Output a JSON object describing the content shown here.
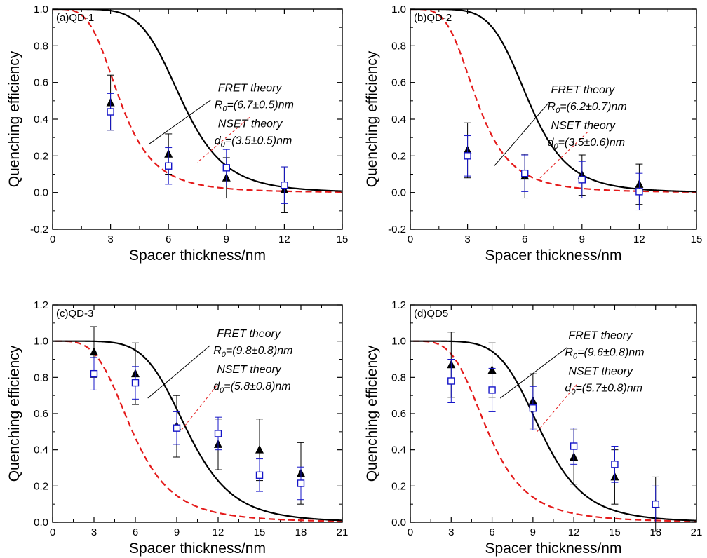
{
  "chart_data": [
    {
      "type": "scatter",
      "panel_label": "(a)QD-1",
      "xlabel": "Spacer thickness/nm",
      "ylabel": "Quenching efficiency",
      "xlim": [
        0,
        15
      ],
      "ylim": [
        -0.2,
        1.0
      ],
      "xticks": [
        "0",
        "3",
        "6",
        "9",
        "12",
        "15"
      ],
      "yticks": [
        "-0.2",
        "0.0",
        "0.2",
        "0.4",
        "0.6",
        "0.8",
        "1.0"
      ],
      "fret_label": "FRET theory",
      "fret_param": "R",
      "fret_value": "=(6.7±0.5)nm",
      "nset_label": "NSET theory",
      "nset_param": "d",
      "nset_value": "=(3.5±0.5)nm",
      "series": [
        {
          "name": "black triangles",
          "x": [
            3,
            6,
            9,
            12
          ],
          "y": [
            0.49,
            0.21,
            0.08,
            0.015
          ],
          "err": [
            0.15,
            0.11,
            0.11,
            0.125
          ],
          "color": "#000000"
        },
        {
          "name": "blue squares",
          "x": [
            3,
            6,
            9,
            12
          ],
          "y": [
            0.44,
            0.145,
            0.135,
            0.04
          ],
          "err": [
            0.1,
            0.1,
            0.1,
            0.1
          ],
          "color": "#1515c8"
        }
      ],
      "fret_curve": {
        "R0": 6.7,
        "color": "#000000",
        "style": "solid"
      },
      "nset_curve": {
        "d0": 3.5,
        "color": "#e41a1a",
        "style": "dashed"
      },
      "fret_pointer": {
        "from": [
          8.2,
          0.505
        ],
        "to": [
          5.0,
          0.265
        ]
      },
      "nset_pointer": {
        "from": [
          10.2,
          0.41
        ],
        "to": [
          7.5,
          0.165
        ]
      }
    },
    {
      "type": "scatter",
      "panel_label": "(b)QD-2",
      "xlabel": "Spacer thickness/nm",
      "ylabel": "Quenching efficiency",
      "xlim": [
        0,
        15
      ],
      "ylim": [
        -0.2,
        1.0
      ],
      "xticks": [
        "0",
        "3",
        "6",
        "9",
        "12",
        "15"
      ],
      "yticks": [
        "-0.2",
        "0.0",
        "0.2",
        "0.4",
        "0.6",
        "0.8",
        "1.0"
      ],
      "fret_label": "FRET theory",
      "fret_param": "R",
      "fret_value": "=(6.2±0.7)nm",
      "nset_label": "NSET theory",
      "nset_param": "d",
      "nset_value": "=(3.5±0.6)nm",
      "series": [
        {
          "name": "black triangles",
          "x": [
            3,
            6,
            9,
            12
          ],
          "y": [
            0.23,
            0.09,
            0.095,
            0.045
          ],
          "err": [
            0.15,
            0.12,
            0.11,
            0.11
          ],
          "color": "#000000"
        },
        {
          "name": "blue squares",
          "x": [
            3,
            6,
            9,
            12
          ],
          "y": [
            0.2,
            0.105,
            0.07,
            0.005
          ],
          "err": [
            0.11,
            0.1,
            0.1,
            0.1
          ],
          "color": "#1515c8"
        }
      ],
      "fret_curve": {
        "R0": 6.2,
        "color": "#000000",
        "style": "solid"
      },
      "nset_curve": {
        "d0": 3.5,
        "color": "#e41a1a",
        "style": "dashed"
      },
      "fret_pointer": {
        "from": [
          7.3,
          0.495
        ],
        "to": [
          4.4,
          0.145
        ]
      },
      "nset_pointer": {
        "from": [
          9.3,
          0.33
        ],
        "to": [
          6.8,
          0.08
        ]
      }
    },
    {
      "type": "scatter",
      "panel_label": "(c)QD-3",
      "xlabel": "Spacer thickness/nm",
      "ylabel": "Quenching efficiency",
      "xlim": [
        0,
        21
      ],
      "ylim": [
        0.0,
        1.2
      ],
      "xticks": [
        "0",
        "3",
        "6",
        "9",
        "12",
        "15",
        "18",
        "21"
      ],
      "yticks": [
        "0.0",
        "0.2",
        "0.4",
        "0.6",
        "0.8",
        "1.0",
        "1.2"
      ],
      "fret_label": "FRET theory",
      "fret_param": "R",
      "fret_value": "=(9.8±0.8)nm",
      "nset_label": "NSET theory",
      "nset_param": "d",
      "nset_value": "=(5.8±0.8)nm",
      "series": [
        {
          "name": "black triangles",
          "x": [
            3,
            6,
            9,
            12,
            15,
            18
          ],
          "y": [
            0.94,
            0.82,
            0.53,
            0.43,
            0.4,
            0.27
          ],
          "err": [
            0.14,
            0.17,
            0.17,
            0.14,
            0.17,
            0.17
          ],
          "color": "#000000"
        },
        {
          "name": "blue squares",
          "x": [
            3,
            6,
            9,
            12,
            15,
            18
          ],
          "y": [
            0.82,
            0.77,
            0.52,
            0.49,
            0.26,
            0.215
          ],
          "err": [
            0.09,
            0.09,
            0.09,
            0.09,
            0.09,
            0.09
          ],
          "color": "#1515c8"
        }
      ],
      "fret_curve": {
        "R0": 9.8,
        "color": "#000000",
        "style": "solid"
      },
      "nset_curve": {
        "d0": 5.8,
        "color": "#e41a1a",
        "style": "dashed"
      },
      "fret_pointer": {
        "from": [
          11.4,
          0.975
        ],
        "to": [
          6.9,
          0.685
        ]
      },
      "nset_pointer": {
        "from": [
          11.9,
          0.755
        ],
        "to": [
          9.3,
          0.505
        ]
      }
    },
    {
      "type": "scatter",
      "panel_label": "(d)QD5",
      "xlabel": "Spacer thickness/nm",
      "ylabel": "Quenching efficiency",
      "xlim": [
        0,
        21
      ],
      "ylim": [
        0.0,
        1.2
      ],
      "xticks": [
        "0",
        "3",
        "6",
        "9",
        "12",
        "15",
        "18",
        "21"
      ],
      "yticks": [
        "0.0",
        "0.2",
        "0.4",
        "0.6",
        "0.8",
        "1.0",
        "1.2"
      ],
      "fret_label": "FRET theory",
      "fret_param": "R",
      "fret_value": "=(9.6±0.8)nm",
      "nset_label": "NSET theory",
      "nset_param": "d",
      "nset_value": "=(5.7±0.8)nm",
      "series": [
        {
          "name": "black triangles",
          "x": [
            3,
            6,
            9,
            12,
            15,
            18
          ],
          "y": [
            0.87,
            0.84,
            0.67,
            0.36,
            0.25,
            0.1
          ],
          "err": [
            0.18,
            0.15,
            0.15,
            0.15,
            0.15,
            0.15
          ],
          "color": "#000000"
        },
        {
          "name": "blue squares",
          "x": [
            3,
            6,
            9,
            12,
            15,
            18
          ],
          "y": [
            0.78,
            0.73,
            0.63,
            0.42,
            0.32,
            0.1
          ],
          "err": [
            0.12,
            0.12,
            0.12,
            0.1,
            0.1,
            0.1
          ],
          "color": "#1515c8"
        }
      ],
      "fret_curve": {
        "R0": 9.6,
        "color": "#000000",
        "style": "solid"
      },
      "nset_curve": {
        "d0": 5.7,
        "color": "#e41a1a",
        "style": "dashed"
      },
      "fret_pointer": {
        "from": [
          11.5,
          0.965
        ],
        "to": [
          6.6,
          0.685
        ]
      },
      "nset_pointer": {
        "from": [
          12.2,
          0.76
        ],
        "to": [
          9.3,
          0.5
        ]
      }
    }
  ]
}
